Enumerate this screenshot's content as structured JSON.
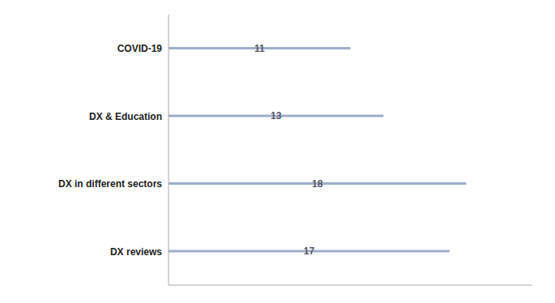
{
  "chart_data": {
    "type": "bar",
    "orientation": "horizontal",
    "categories": [
      "DX reviews",
      "DX in different sectors",
      "DX & Education",
      "COVID-19"
    ],
    "values": [
      17,
      18,
      13,
      11
    ],
    "color": "#9faec8",
    "xlim": [
      0,
      22
    ],
    "grid": false,
    "data_labels": true,
    "tick_labels": "y"
  }
}
